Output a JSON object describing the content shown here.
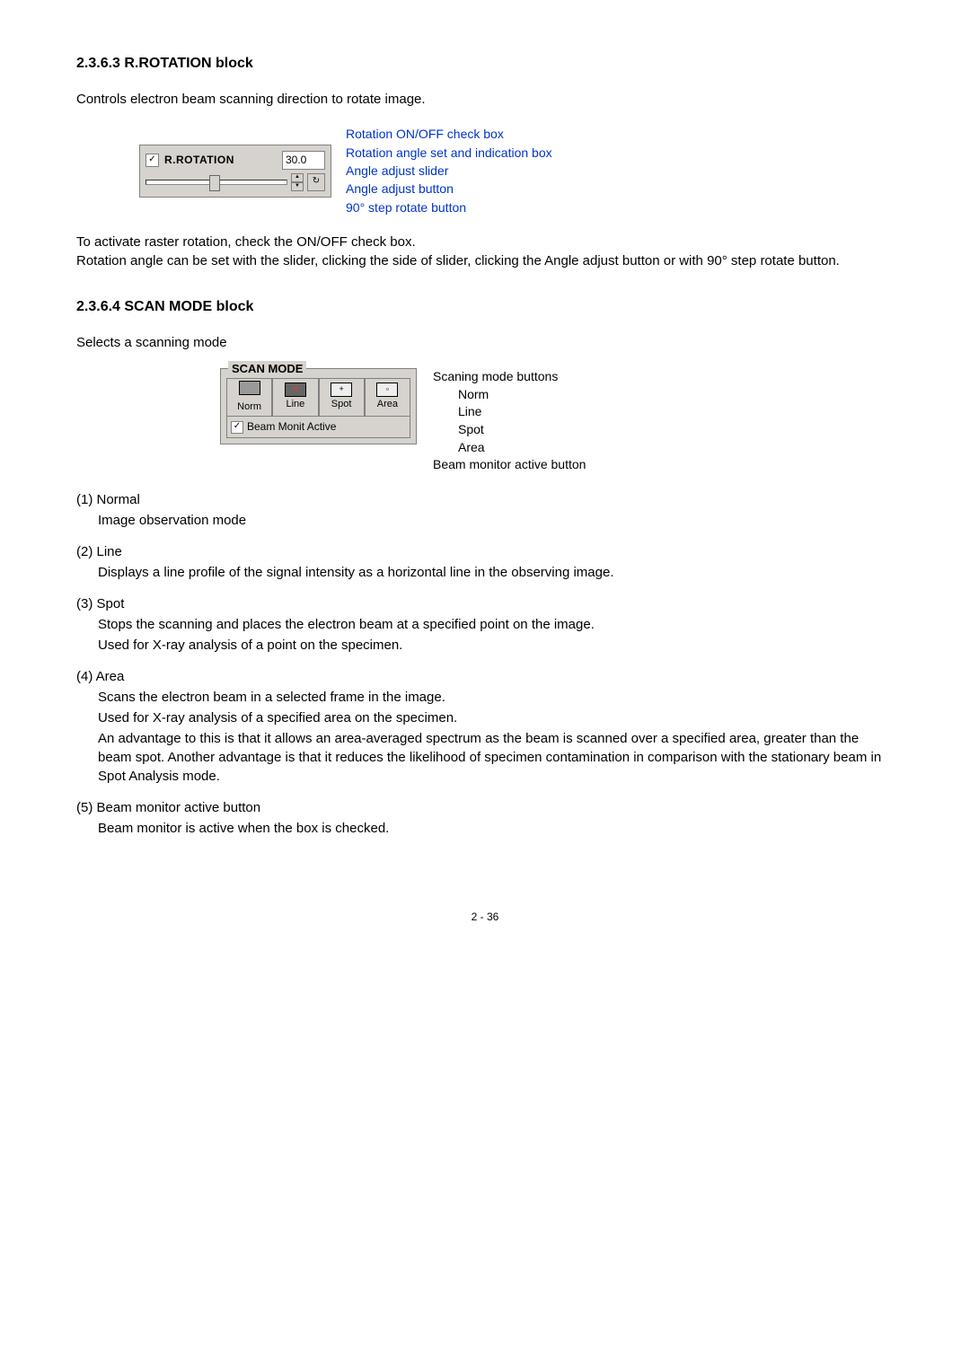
{
  "section1": {
    "heading": "2.3.6.3   R.ROTATION block",
    "intro": "Controls electron beam scanning direction to rotate image.",
    "panel": {
      "checkbox_checked": "✓",
      "label": "R.ROTATION",
      "angle_value": "30.0"
    },
    "callouts": {
      "c1": "Rotation ON/OFF check box",
      "c2": "Rotation angle set and indication box",
      "c3": "Angle adjust slider",
      "c4": "Angle adjust button",
      "c5": "90° step rotate button"
    },
    "para2a": "To activate raster rotation, check the ON/OFF check box.",
    "para2b": "Rotation angle can be set with the slider, clicking the side of slider, clicking the Angle adjust button or with 90° step rotate button."
  },
  "section2": {
    "heading": "2.3.6.4   SCAN MODE block",
    "intro": "Selects a scanning mode",
    "panel": {
      "legend": "SCAN MODE",
      "btn1": "Norm",
      "btn2": "Line",
      "btn3": "Spot",
      "btn4": "Area",
      "beam_chk": "✓",
      "beam_label": "Beam Monit Active"
    },
    "callouts": {
      "c1": "Scaning mode buttons",
      "c2": "Norm",
      "c3": "Line",
      "c4": "Spot",
      "c5": "Area",
      "c6": "Beam monitor active button"
    },
    "items": {
      "i1_t": "(1) Normal",
      "i1_b": "Image observation mode",
      "i2_t": "(2) Line",
      "i2_b": "Displays a line profile of the signal intensity as a horizontal line in the observing image.",
      "i3_t": "(3) Spot",
      "i3_b1": "Stops the scanning and places the electron beam at a specified point on the image.",
      "i3_b2": "Used for X-ray analysis of a point on the specimen.",
      "i4_t": "(4) Area",
      "i4_b1": "Scans the electron beam in a selected frame in the image.",
      "i4_b2": "Used for X-ray analysis of a specified area on the specimen.",
      "i4_b3": "An advantage to this is that it allows an area-averaged spectrum as the beam is scanned over a specified area, greater than the beam spot.   Another advantage is that it reduces the likelihood of specimen contamination in comparison with the stationary beam in Spot Analysis mode.",
      "i5_t": "(5) Beam monitor active button",
      "i5_b": "Beam monitor is active when the box is checked."
    }
  },
  "page_num": "2 - 36"
}
